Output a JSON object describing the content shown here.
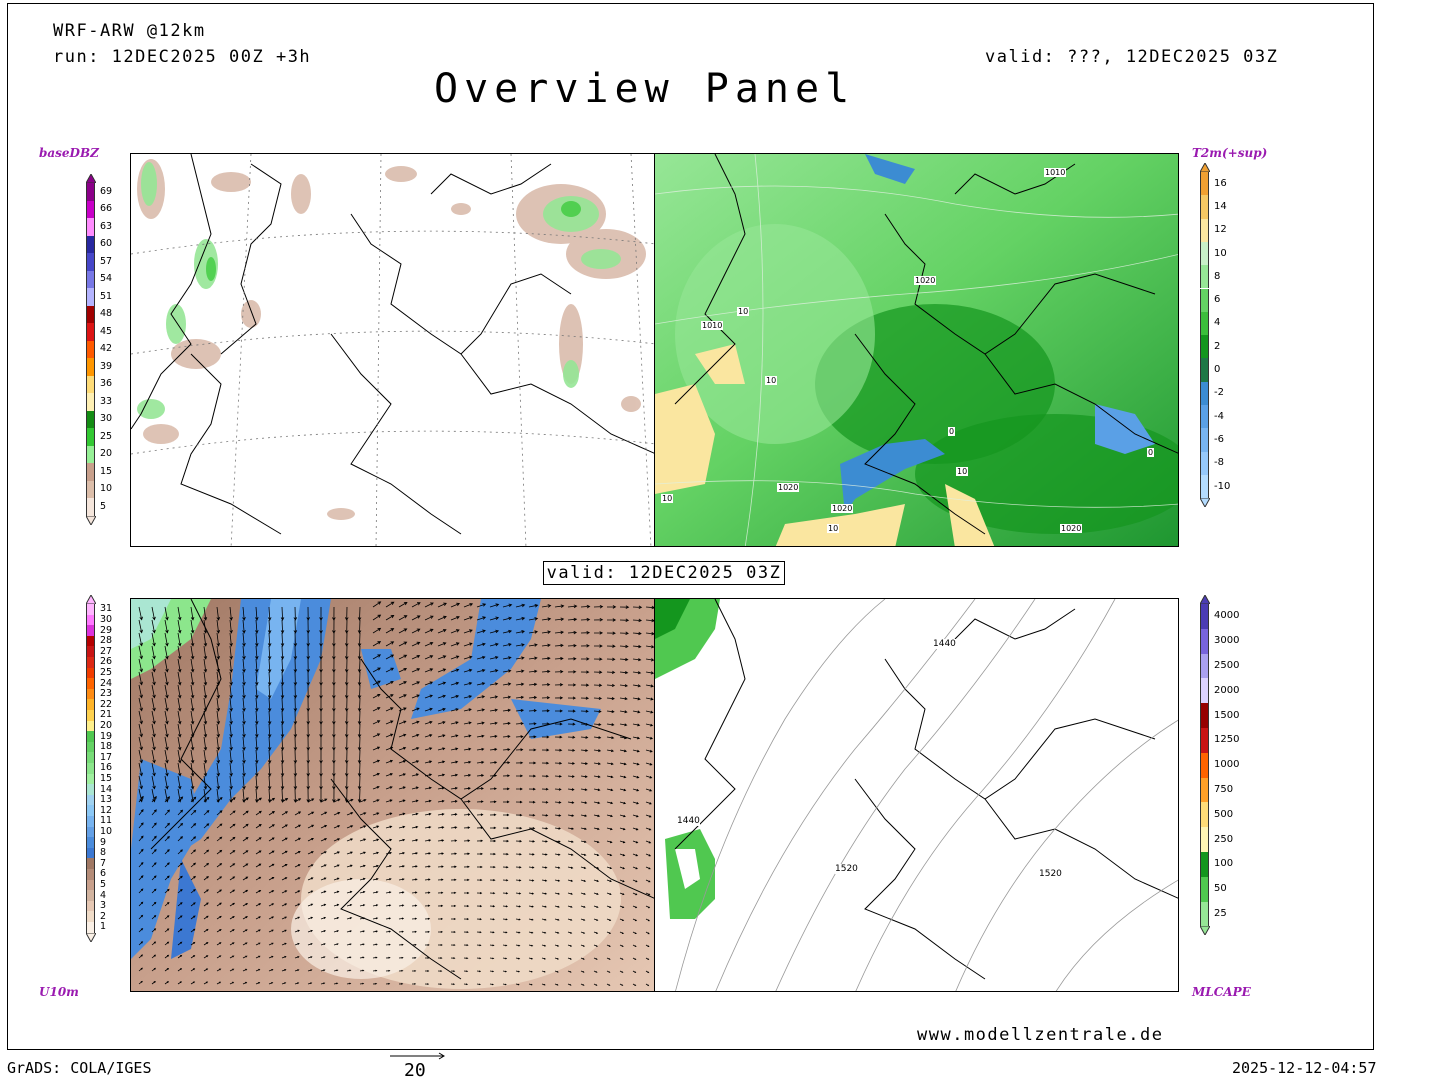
{
  "header": {
    "model": "WRF-ARW @12km",
    "run": "run: 12DEC2025 00Z +3h",
    "valid": "valid: ???, 12DEC2025 03Z",
    "title": "Overview Panel"
  },
  "panels": {
    "top_left": {
      "field_label": "baseDBZ"
    },
    "top_right": {
      "field_label": "T2m(+sup)",
      "contour_labels": [
        "1010",
        "1020",
        "1010",
        "10",
        "10",
        "1020",
        "1020",
        "10",
        "10",
        "1020",
        "0",
        "0",
        "10"
      ]
    },
    "bottom_left": {
      "field_label": "U10m"
    },
    "bottom_right": {
      "field_label": "MLCAPE",
      "contour_labels": [
        "1440",
        "1440",
        "1520",
        "1520"
      ]
    }
  },
  "center_valid": "valid: 12DEC2025 03Z",
  "legends": {
    "dbz": {
      "labels": [
        "69",
        "66",
        "63",
        "60",
        "57",
        "54",
        "51",
        "48",
        "45",
        "42",
        "39",
        "36",
        "33",
        "30",
        "25",
        "20",
        "15",
        "10",
        "5"
      ],
      "colors": [
        "#8b0089",
        "#c800c8",
        "#ff8cff",
        "#2828a0",
        "#4646c8",
        "#7878e6",
        "#b4b4ff",
        "#a00000",
        "#dc1414",
        "#ff5a00",
        "#ff9600",
        "#ffdc78",
        "#fff0b4",
        "#148c14",
        "#32c832",
        "#96f096",
        "#c8a08c",
        "#dcbeaa",
        "#f5e6dc"
      ]
    },
    "t2m": {
      "labels": [
        "16",
        "14",
        "12",
        "10",
        "8",
        "6",
        "4",
        "2",
        "0",
        "-2",
        "-4",
        "-6",
        "-8",
        "-10"
      ],
      "colors": [
        "#f0a032",
        "#f5c864",
        "#fae6a0",
        "#c8f0c8",
        "#96e696",
        "#64d264",
        "#3cbe3c",
        "#14961e",
        "#1e7846",
        "#3c8cd2",
        "#5aa0e6",
        "#78b4f0",
        "#96c8fa",
        "#b4dcff"
      ]
    },
    "u10": {
      "labels": [
        "31",
        "30",
        "29",
        "28",
        "27",
        "26",
        "25",
        "24",
        "23",
        "22",
        "21",
        "20",
        "19",
        "18",
        "17",
        "16",
        "15",
        "14",
        "13",
        "12",
        "11",
        "10",
        "9",
        "8",
        "7",
        "6",
        "5",
        "4",
        "3",
        "2",
        "1"
      ],
      "colors": [
        "#ffb4ff",
        "#ff78ff",
        "#dc32dc",
        "#b40000",
        "#c81414",
        "#dc2814",
        "#f03c00",
        "#ff6400",
        "#ff8c14",
        "#ffb428",
        "#ffd250",
        "#fff08c",
        "#50c850",
        "#64d264",
        "#78dc78",
        "#8ce68c",
        "#a0f0a0",
        "#aae6d2",
        "#a0d2f0",
        "#8cc8f5",
        "#78b4f0",
        "#64a0e6",
        "#4b8cdc",
        "#3c78d2",
        "#a07864",
        "#b48c78",
        "#c8a08c",
        "#d2b4a0",
        "#e6c8b4",
        "#f0dcc8",
        "#faf0e6"
      ]
    },
    "cape": {
      "labels": [
        "4000",
        "3000",
        "2500",
        "2000",
        "1500",
        "1250",
        "1000",
        "750",
        "500",
        "250",
        "100",
        "50",
        "25"
      ],
      "colors": [
        "#4b3cb4",
        "#7864dc",
        "#aaa0f0",
        "#dcd2ff",
        "#960000",
        "#c81414",
        "#ff6400",
        "#ffa028",
        "#ffdc78",
        "#fff5b4",
        "#14961e",
        "#50c850",
        "#96e696"
      ]
    }
  },
  "wind_vector_scale": "20",
  "footer": {
    "grads": "GrADS: COLA/IGES",
    "timestamp": "2025-12-12-04:57",
    "url": "www.modellzentrale.de"
  }
}
